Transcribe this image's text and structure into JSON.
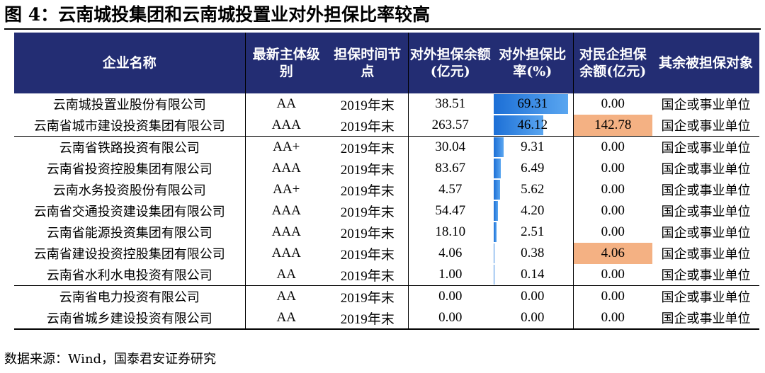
{
  "title": "图 4：云南城投集团和云南城投置业对外担保比率较高",
  "headers": {
    "company": "企业名称",
    "rating": "最新主体级别",
    "time": "担保时间节点",
    "ext_balance": "对外担保余额(亿元)",
    "ext_ratio": "对外担保比率(%)",
    "private_balance": "对民企担保余额(亿元)",
    "other_targets": "其余被担保对象"
  },
  "rows": [
    {
      "name": "云南城投置业股份有限公司",
      "rating": "AA",
      "time": "2019年末",
      "ext_balance": "38.51",
      "ratio": "69.31",
      "ratio_value": 69.31,
      "private": "0.00",
      "private_highlight": false,
      "target": "国企或事业单位"
    },
    {
      "name": "云南省城市建设投资集团有限公司",
      "rating": "AAA",
      "time": "2019年末",
      "ext_balance": "263.57",
      "ratio": "46.12",
      "ratio_value": 46.12,
      "private": "142.78",
      "private_highlight": true,
      "target": "国企或事业单位"
    },
    {
      "name": "云南省铁路投资有限公司",
      "rating": "AA+",
      "time": "2019年末",
      "ext_balance": "30.04",
      "ratio": "9.31",
      "ratio_value": 9.31,
      "private": "0.00",
      "private_highlight": false,
      "target": "国企或事业单位"
    },
    {
      "name": "云南省投资控股集团有限公司",
      "rating": "AAA",
      "time": "2019年末",
      "ext_balance": "83.67",
      "ratio": "6.49",
      "ratio_value": 6.49,
      "private": "0.00",
      "private_highlight": false,
      "target": "国企或事业单位"
    },
    {
      "name": "云南水务投资股份有限公司",
      "rating": "AA+",
      "time": "2019年末",
      "ext_balance": "4.57",
      "ratio": "5.62",
      "ratio_value": 5.62,
      "private": "0.00",
      "private_highlight": false,
      "target": "国企或事业单位"
    },
    {
      "name": "云南省交通投资建设集团有限公司",
      "rating": "AAA",
      "time": "2019年末",
      "ext_balance": "54.47",
      "ratio": "4.20",
      "ratio_value": 4.2,
      "private": "0.00",
      "private_highlight": false,
      "target": "国企或事业单位"
    },
    {
      "name": "云南省能源投资集团有限公司",
      "rating": "AAA",
      "time": "2019年末",
      "ext_balance": "18.10",
      "ratio": "2.51",
      "ratio_value": 2.51,
      "private": "0.00",
      "private_highlight": false,
      "target": "国企或事业单位"
    },
    {
      "name": "云南省建设投资控股集团有限公司",
      "rating": "AAA",
      "time": "2019年末",
      "ext_balance": "4.06",
      "ratio": "0.38",
      "ratio_value": 0.38,
      "private": "4.06",
      "private_highlight": true,
      "target": "国企或事业单位"
    },
    {
      "name": "云南省水利水电投资有限公司",
      "rating": "AA",
      "time": "2019年末",
      "ext_balance": "1.00",
      "ratio": "0.14",
      "ratio_value": 0.14,
      "private": "0.00",
      "private_highlight": false,
      "target": "国企或事业单位"
    },
    {
      "name": "云南省电力投资有限公司",
      "rating": "AA",
      "time": "2019年末",
      "ext_balance": "0.00",
      "ratio": "0.00",
      "ratio_value": 0.0,
      "private": "0.00",
      "private_highlight": false,
      "target": "国企或事业单位"
    },
    {
      "name": "云南省城乡建设投资有限公司",
      "rating": "AA",
      "time": "2019年末",
      "ext_balance": "0.00",
      "ratio": "0.00",
      "ratio_value": 0.0,
      "private": "0.00",
      "private_highlight": false,
      "target": "国企或事业单位"
    }
  ],
  "source": "数据来源：Wind，国泰君安证券研究",
  "colors": {
    "header_bg": "#232d73",
    "bar": "#1c6fd6",
    "highlight": "#f4b183"
  }
}
